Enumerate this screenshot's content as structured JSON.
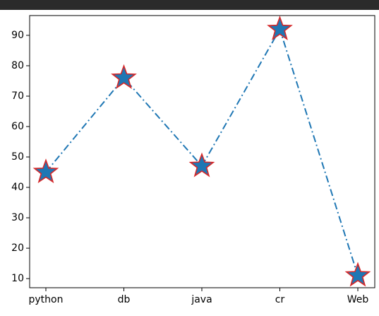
{
  "chart_data": {
    "type": "line",
    "categories": [
      "python",
      "db",
      "java",
      "cr",
      "Web"
    ],
    "values": [
      45,
      76,
      47,
      92,
      11
    ],
    "ylim": [
      7,
      96.5
    ],
    "yticks": [
      10,
      20,
      30,
      40,
      50,
      60,
      70,
      80,
      90
    ],
    "line_style": "dash-dot",
    "marker": "star",
    "line_color": "#1f77b4",
    "marker_face_color": "#1f77b4",
    "marker_edge_color": "#d62728",
    "grid": false,
    "title": "",
    "xlabel": "",
    "ylabel": ""
  }
}
